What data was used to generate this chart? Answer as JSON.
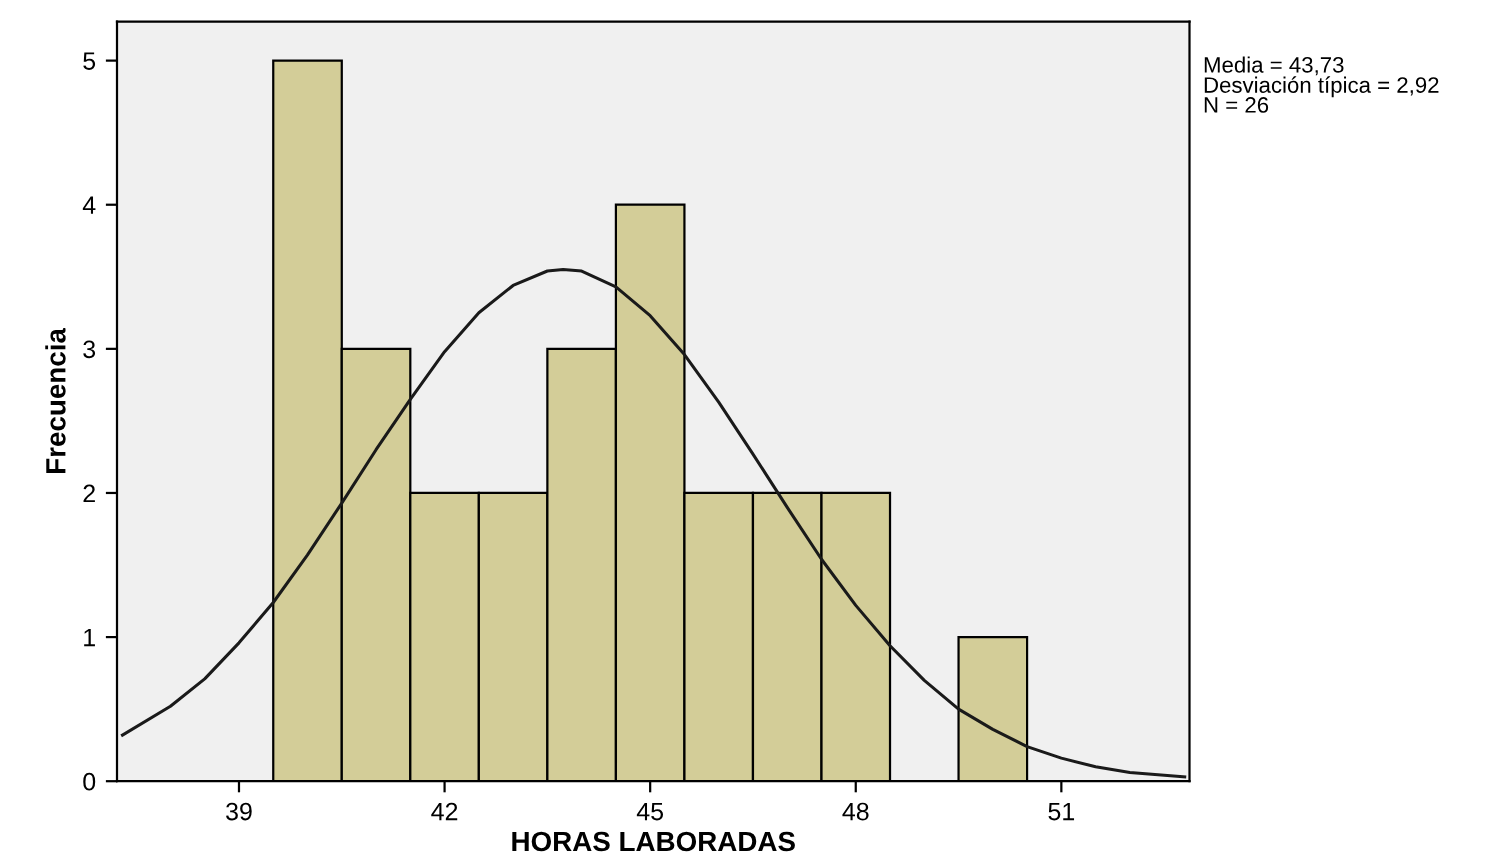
{
  "chart_data": {
    "type": "histogram",
    "bins": [
      39.5,
      40.5,
      41.5,
      42.5,
      43.5,
      44.5,
      45.5,
      46.5,
      47.5,
      48.5,
      49.5,
      50.5
    ],
    "values": [
      5,
      3,
      2,
      2,
      3,
      4,
      2,
      2,
      2,
      0,
      1
    ],
    "color": "#d3cd98",
    "series": [
      {
        "type": "line",
        "color": "#1a1a1a",
        "x": [
          37.3,
          38,
          38.5,
          39,
          39.5,
          40,
          40.5,
          41,
          41.5,
          42,
          42.5,
          43,
          43.5,
          43.73,
          44,
          44.5,
          45,
          45.5,
          46,
          46.5,
          47,
          47.5,
          48,
          48.5,
          49,
          49.5,
          50,
          50.5,
          51,
          51.5,
          52,
          52.8
        ],
        "values": [
          0.32,
          0.52,
          0.71,
          0.96,
          1.24,
          1.57,
          1.93,
          2.3,
          2.65,
          2.98,
          3.25,
          3.44,
          3.54,
          3.55,
          3.54,
          3.43,
          3.23,
          2.96,
          2.63,
          2.27,
          1.9,
          1.54,
          1.22,
          0.94,
          0.7,
          0.5,
          0.36,
          0.24,
          0.16,
          0.1,
          0.06,
          0.03
        ]
      }
    ],
    "xlim": [
      37.22,
      52.87
    ],
    "xticks": [
      39,
      42,
      45,
      48,
      51
    ],
    "ylim": [
      0,
      5.27
    ],
    "yticks": [
      0,
      1,
      2,
      3,
      4,
      5
    ],
    "xlabel": "HORAS LABORADAS",
    "ylabel": "Frecuencia",
    "annotations": [
      "Media = 43,73\nDesviación típica = 2,92\nN = 26"
    ],
    "grid": false,
    "legend": false
  }
}
